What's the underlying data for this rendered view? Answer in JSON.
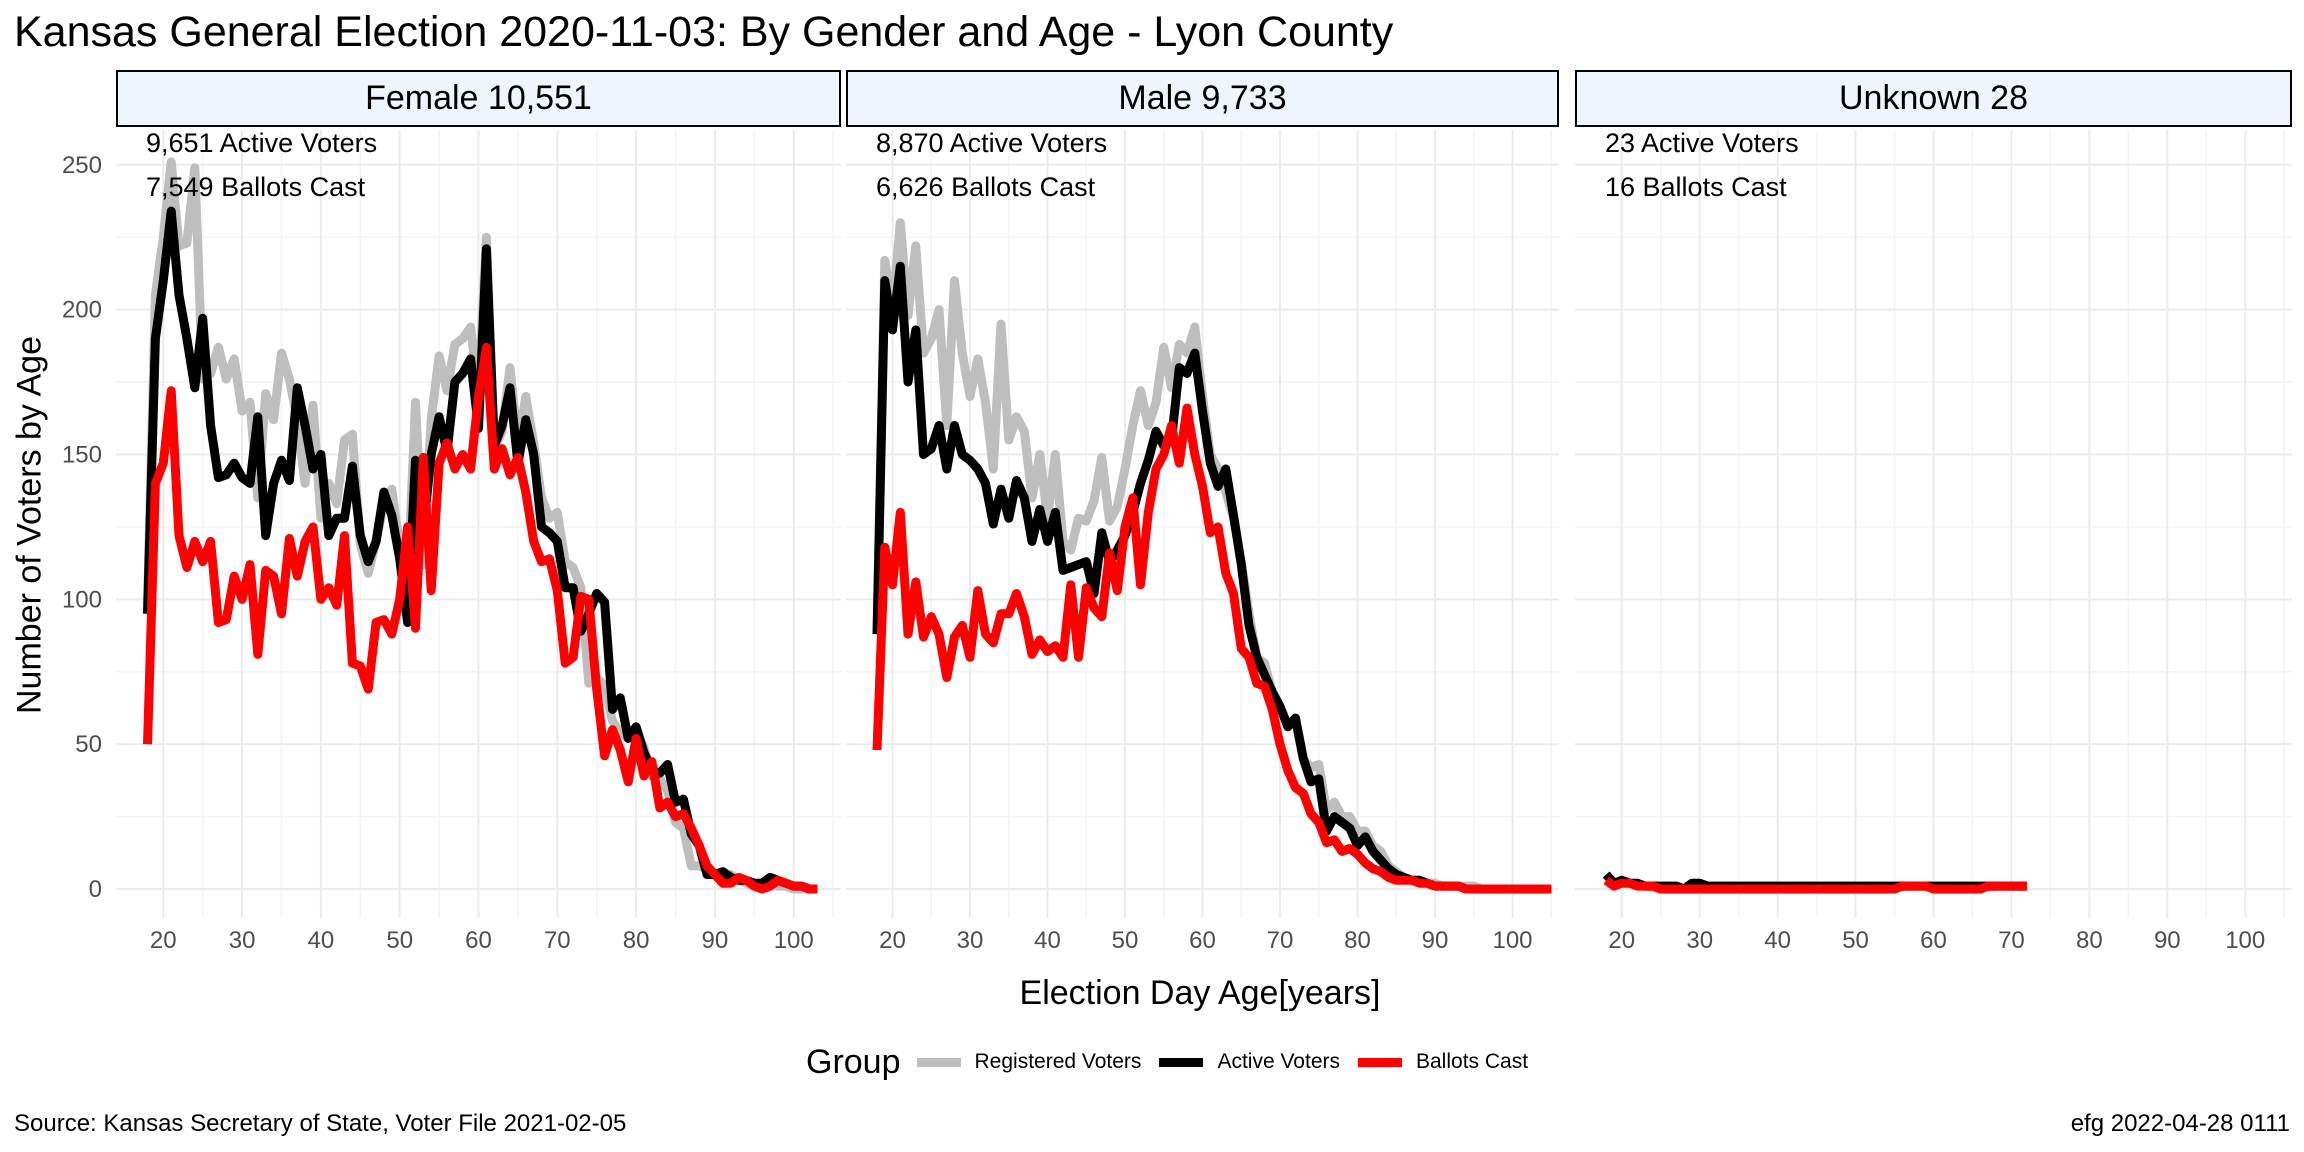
{
  "title": "Kansas General Election 2020-11-03:  By Gender and Age - Lyon County",
  "xlabel": "Election Day Age[years]",
  "ylabel": "Number of Voters by Age",
  "legend": {
    "title": "Group",
    "items": [
      {
        "label": "Registered Voters",
        "color": "#bebebe"
      },
      {
        "label": "Active Voters",
        "color": "#000000"
      },
      {
        "label": "Ballots Cast",
        "color": "#ff0000"
      }
    ]
  },
  "caption_left": "Source:  Kansas Secretary of State, Voter File  2021-02-05",
  "caption_right": "efg 2022-04-28 0111",
  "colors": {
    "registered": "#bebebe",
    "active": "#000000",
    "ballots": "#ff0000",
    "strip_bg": "#eef5fc",
    "grid": "#ebebeb"
  },
  "chart_data": {
    "type": "line",
    "xlim": [
      14,
      106
    ],
    "ylim": [
      -10,
      262
    ],
    "x_ticks": [
      20,
      30,
      40,
      50,
      60,
      70,
      80,
      90,
      100
    ],
    "y_ticks": [
      0,
      50,
      100,
      150,
      200,
      250
    ],
    "grid": true,
    "legend_position": "bottom",
    "panels": [
      {
        "strip": "Female 10,551",
        "annotations": [
          "9,651 Active Voters",
          "7,549 Ballots Cast"
        ],
        "x_start": 18,
        "series": [
          {
            "name": "Registered Voters",
            "values": [
              98,
              205,
              225,
              251,
              222,
              223,
              249,
              176,
              178,
              187,
              176,
              183,
              165,
              168,
              135,
              171,
              162,
              185,
              176,
              162,
              140,
              167,
              128,
              140,
              133,
              155,
              157,
              119,
              109,
              120,
              133,
              138,
              118,
              105,
              168,
              112,
              162,
              184,
              172,
              188,
              190,
              194,
              171,
              225,
              152,
              158,
              180,
              153,
              170,
              154,
              135,
              128,
              130,
              113,
              111,
              104,
              71,
              73,
              70,
              58,
              54,
              52,
              54,
              49,
              39,
              38,
              34,
              23,
              21,
              8,
              8,
              7,
              5,
              4,
              5,
              3,
              2,
              1,
              1,
              2,
              1,
              1,
              0,
              0,
              0,
              0
            ]
          },
          {
            "name": "Active Voters",
            "values": [
              95,
              190,
              210,
              234,
              205,
              190,
              173,
              197,
              160,
              142,
              143,
              147,
              142,
              140,
              163,
              122,
              140,
              148,
              141,
              173,
              160,
              145,
              150,
              122,
              128,
              128,
              146,
              122,
              113,
              120,
              137,
              129,
              114,
              92,
              148,
              124,
              150,
              163,
              151,
              175,
              178,
              183,
              159,
              221,
              153,
              160,
              173,
              147,
              162,
              150,
              125,
              123,
              120,
              104,
              104,
              89,
              95,
              102,
              99,
              62,
              66,
              52,
              56,
              47,
              41,
              40,
              43,
              30,
              31,
              19,
              15,
              5,
              5,
              6,
              4,
              3,
              3,
              2,
              2,
              4,
              3,
              2,
              1,
              1,
              0,
              0
            ]
          },
          {
            "name": "Ballots Cast",
            "values": [
              50,
              140,
              147,
              172,
              122,
              111,
              120,
              113,
              120,
              92,
              93,
              108,
              100,
              112,
              81,
              110,
              108,
              95,
              121,
              108,
              120,
              125,
              100,
              104,
              98,
              122,
              78,
              77,
              69,
              92,
              93,
              88,
              100,
              125,
              90,
              149,
              103,
              147,
              154,
              145,
              150,
              145,
              170,
              187,
              145,
              152,
              143,
              149,
              137,
              120,
              113,
              114,
              103,
              78,
              80,
              101,
              100,
              69,
              46,
              55,
              48,
              37,
              52,
              39,
              44,
              28,
              30,
              25,
              26,
              21,
              15,
              8,
              5,
              2,
              2,
              4,
              3,
              1,
              0,
              1,
              3,
              2,
              1,
              1,
              0,
              0
            ]
          }
        ]
      },
      {
        "strip": "Male 9,733",
        "annotations": [
          "8,870 Active Voters",
          "6,626 Ballots Cast"
        ],
        "x_start": 18,
        "series": [
          {
            "name": "Registered Voters",
            "values": [
              88,
              217,
              200,
              230,
              198,
              222,
              185,
              190,
              200,
              160,
              210,
              185,
              170,
              183,
              168,
              145,
              195,
              155,
              163,
              158,
              135,
              150,
              128,
              150,
              120,
              117,
              128,
              127,
              134,
              149,
              127,
              132,
              145,
              160,
              172,
              160,
              168,
              187,
              173,
              188,
              185,
              194,
              170,
              150,
              145,
              137,
              128,
              113,
              95,
              80,
              78,
              68,
              63,
              57,
              58,
              45,
              42,
              43,
              27,
              30,
              25,
              25,
              20,
              20,
              15,
              13,
              8,
              6,
              4,
              3,
              3,
              2,
              2,
              1,
              1,
              1,
              1,
              1,
              0,
              0,
              0,
              0,
              0,
              0,
              0,
              0,
              0,
              0
            ]
          },
          {
            "name": "Active Voters",
            "values": [
              88,
              210,
              193,
              215,
              175,
              193,
              150,
              152,
              160,
              145,
              160,
              150,
              148,
              145,
              140,
              126,
              138,
              128,
              141,
              135,
              120,
              131,
              120,
              130,
              110,
              111,
              112,
              113,
              102,
              123,
              113,
              117,
              122,
              130,
              140,
              148,
              158,
              153,
              155,
              180,
              178,
              185,
              165,
              147,
              139,
              145,
              129,
              112,
              91,
              80,
              74,
              68,
              63,
              56,
              59,
              45,
              37,
              38,
              20,
              25,
              23,
              21,
              15,
              18,
              13,
              10,
              7,
              5,
              4,
              3,
              3,
              2,
              1,
              1,
              1,
              1,
              0,
              0,
              0,
              0,
              0,
              0,
              0,
              0,
              0,
              0,
              0,
              0
            ]
          },
          {
            "name": "Ballots Cast",
            "values": [
              48,
              118,
              105,
              130,
              88,
              106,
              87,
              94,
              88,
              73,
              87,
              91,
              80,
              103,
              88,
              85,
              95,
              95,
              102,
              94,
              81,
              86,
              82,
              84,
              80,
              105,
              80,
              104,
              97,
              94,
              116,
              103,
              125,
              135,
              105,
              130,
              145,
              150,
              160,
              147,
              166,
              150,
              139,
              123,
              125,
              109,
              102,
              83,
              80,
              71,
              70,
              62,
              50,
              41,
              35,
              33,
              26,
              23,
              16,
              17,
              13,
              14,
              12,
              9,
              7,
              6,
              4,
              3,
              3,
              3,
              2,
              2,
              1,
              1,
              1,
              1,
              0,
              0,
              0,
              0,
              0,
              0,
              0,
              0,
              0,
              0,
              0,
              0
            ]
          }
        ]
      },
      {
        "strip": "Unknown 28",
        "annotations": [
          "23 Active Voters",
          "16 Ballots Cast"
        ],
        "x_start": 18,
        "series": [
          {
            "name": "Registered Voters",
            "values": [
              5,
              2,
              3,
              2,
              2,
              1,
              1,
              1,
              1,
              1,
              0,
              2,
              2,
              1,
              1,
              1,
              1,
              1,
              1,
              1,
              1,
              1,
              1,
              1,
              1,
              1,
              1,
              1,
              1,
              1,
              1,
              1,
              1,
              1,
              1,
              1,
              1,
              1,
              1,
              1,
              1,
              1,
              1,
              1,
              1,
              1,
              1,
              1,
              1,
              1,
              1,
              1,
              1,
              1,
              1
            ]
          },
          {
            "name": "Active Voters",
            "values": [
              5,
              2,
              3,
              2,
              2,
              1,
              1,
              1,
              1,
              1,
              0,
              2,
              2,
              1,
              1,
              1,
              1,
              1,
              1,
              1,
              1,
              1,
              1,
              1,
              1,
              1,
              1,
              1,
              1,
              1,
              1,
              1,
              1,
              1,
              1,
              1,
              1,
              1,
              1,
              1,
              1,
              1,
              1,
              1,
              1,
              1,
              1,
              1,
              1,
              1,
              1,
              1,
              1,
              1,
              1
            ]
          },
          {
            "name": "Ballots Cast",
            "values": [
              3,
              1,
              2,
              2,
              1,
              1,
              1,
              0,
              0,
              0,
              0,
              0,
              0,
              0,
              0,
              0,
              0,
              0,
              0,
              0,
              0,
              0,
              0,
              0,
              0,
              0,
              0,
              0,
              0,
              0,
              0,
              0,
              0,
              0,
              0,
              0,
              0,
              0,
              1,
              1,
              1,
              1,
              0,
              0,
              0,
              0,
              0,
              0,
              0,
              1,
              1,
              1,
              1,
              1,
              1
            ]
          }
        ]
      }
    ]
  }
}
